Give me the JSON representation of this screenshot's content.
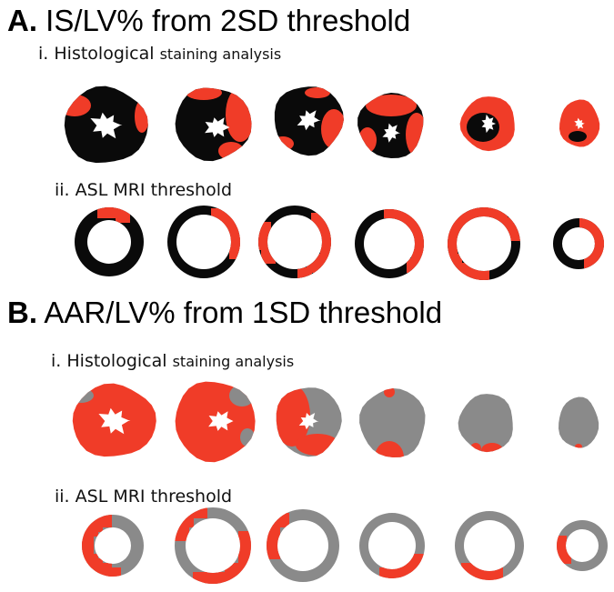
{
  "sections": [
    {
      "letter": "A.",
      "title": "IS/LV% from 2SD threshold",
      "histology": {
        "numeral": "i.",
        "label_large": "Histological",
        "label_small": "staining analysis"
      },
      "mri": {
        "numeral": "ii.",
        "label": "ASL MRI threshold"
      },
      "colors": {
        "base": "#0a0a0a",
        "highlight": "#f03c28"
      }
    },
    {
      "letter": "B.",
      "title": "AAR/LV% from 1SD threshold",
      "histology": {
        "numeral": "i.",
        "label_large": "Histological",
        "label_small": "staining analysis"
      },
      "mri": {
        "numeral": "ii.",
        "label": "ASL MRI threshold"
      },
      "colors": {
        "base": "#8a8a8a",
        "highlight": "#f03c28"
      }
    }
  ]
}
